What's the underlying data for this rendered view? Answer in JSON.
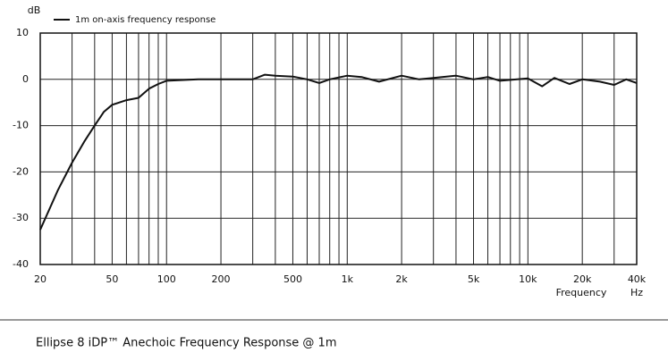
{
  "chart_data": {
    "type": "line",
    "title": "Ellipse 8 iDP™ Anechoic Frequency Response @ 1m",
    "y_label": "dB",
    "x_label": "Frequency",
    "x_unit_label": "Hz",
    "x_scale": "log",
    "grid": true,
    "x": [
      20,
      25,
      30,
      35,
      40,
      45,
      50,
      60,
      70,
      80,
      90,
      100,
      150,
      200,
      300,
      350,
      400,
      500,
      600,
      700,
      800,
      1000,
      1200,
      1500,
      2000,
      2500,
      3000,
      4000,
      5000,
      6000,
      7000,
      10000,
      12000,
      14000,
      17000,
      20000,
      25000,
      30000,
      35000,
      40000
    ],
    "series": [
      {
        "name": "1m on-axis frequency response",
        "color": "#111111",
        "values": [
          -32.5,
          -24,
          -18,
          -13.5,
          -10,
          -7,
          -5.5,
          -4.5,
          -4,
          -2,
          -1,
          -0.3,
          0,
          0,
          0,
          1,
          0.8,
          0.6,
          0,
          -0.8,
          0,
          0.8,
          0.5,
          -0.5,
          0.8,
          0,
          0.3,
          0.8,
          0,
          0.5,
          -0.3,
          0.2,
          -1.5,
          0.3,
          -1,
          0,
          -0.5,
          -1.2,
          0,
          -0.8
        ]
      }
    ],
    "xlim": [
      20,
      40000
    ],
    "ylim": [
      -40,
      10
    ],
    "xticks": [
      20,
      50,
      100,
      200,
      500,
      {
        "value": 1000,
        "label": "1k"
      },
      {
        "value": 2000,
        "label": "2k"
      },
      {
        "value": 5000,
        "label": "5k"
      },
      {
        "value": 10000,
        "label": "10k"
      },
      {
        "value": 20000,
        "label": "20k"
      },
      {
        "value": 40000,
        "label": "40k"
      }
    ],
    "xgrid_minor": [
      30,
      40,
      60,
      70,
      80,
      90,
      300,
      400,
      600,
      700,
      800,
      900,
      3000,
      4000,
      6000,
      7000,
      8000,
      9000,
      30000
    ],
    "yticks": [
      10,
      0,
      -10,
      -20,
      -30,
      -40
    ]
  }
}
